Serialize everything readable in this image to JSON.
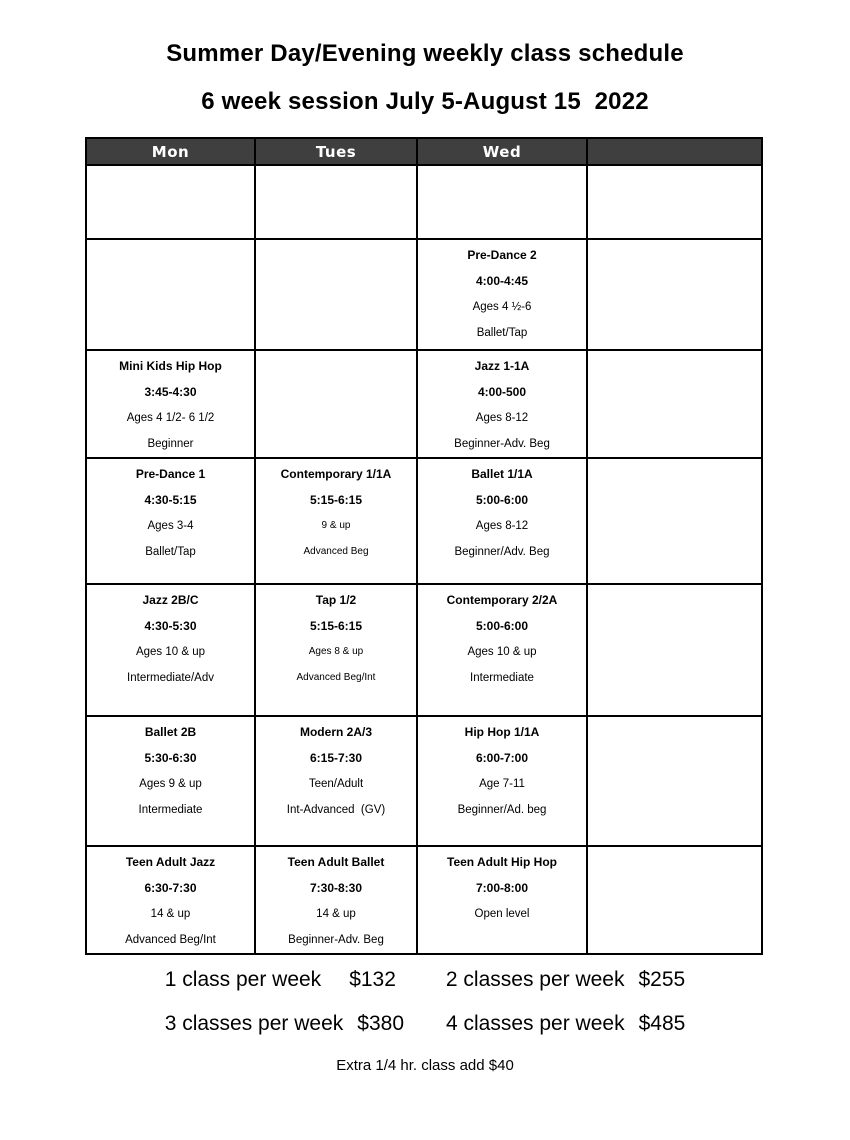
{
  "title": "Summer Day/Evening weekly class schedule",
  "subtitle": "6 week session July 5-August 15  2022",
  "table": {
    "headers": [
      "Mon",
      "Tues",
      "Wed",
      ""
    ],
    "rows": [
      {
        "cells": [
          [],
          [],
          [],
          []
        ]
      },
      {
        "cells": [
          [],
          [],
          [
            "Pre-Dance 2",
            "4:00-4:45",
            "Ages 4 ½-6",
            "Ballet/Tap"
          ],
          []
        ]
      },
      {
        "cells": [
          [
            "Mini Kids Hip Hop",
            "3:45-4:30",
            "Ages 4 1/2- 6 1/2",
            "Beginner"
          ],
          [],
          [
            "Jazz 1-1A",
            "4:00-500",
            "Ages 8-12",
            "Beginner-Adv. Beg"
          ],
          []
        ]
      },
      {
        "cells": [
          [
            "Pre-Dance 1",
            "4:30-5:15",
            "Ages 3-4",
            "Ballet/Tap"
          ],
          [
            "Contemporary 1/1A",
            "5:15-6:15",
            "9 & up",
            "Advanced Beg"
          ],
          [
            "Ballet 1/1A",
            "5:00-6:00",
            "Ages 8-12",
            "Beginner/Adv. Beg"
          ],
          []
        ]
      },
      {
        "cells": [
          [
            "Jazz 2B/C",
            "4:30-5:30",
            "Ages 10 & up",
            "Intermediate/Adv"
          ],
          [
            "Tap 1/2",
            "5:15-6:15",
            "Ages 8 & up",
            "Advanced Beg/Int"
          ],
          [
            "Contemporary 2/2A",
            "5:00-6:00",
            "Ages 10 & up",
            "Intermediate"
          ],
          []
        ]
      },
      {
        "cells": [
          [
            "Ballet 2B",
            "5:30-6:30",
            "Ages 9 & up",
            "Intermediate"
          ],
          [
            "Modern 2A/3",
            "6:15-7:30",
            "Teen/Adult",
            "Int-Advanced  (GV)"
          ],
          [
            "Hip Hop 1/1A",
            "6:00-7:00",
            "Age 7-11",
            "Beginner/Ad. beg"
          ],
          []
        ]
      },
      {
        "cells": [
          [
            "Teen Adult Jazz",
            "6:30-7:30",
            "14 & up",
            "Advanced Beg/Int"
          ],
          [
            "Teen Adult Ballet",
            "7:30-8:30",
            "14 & up",
            "Beginner-Adv. Beg"
          ],
          [
            "Teen Adult Hip Hop",
            "7:00-8:00",
            "Open level"
          ],
          []
        ]
      }
    ]
  },
  "pricing": {
    "options": [
      {
        "label": "1 class per week",
        "price": "$132"
      },
      {
        "label": "2 classes per week",
        "price": "$255"
      },
      {
        "label": "3 classes per week",
        "price": "$380"
      },
      {
        "label": "4 classes per week",
        "price": "$485"
      }
    ],
    "extra_note": "Extra 1/4 hr. class add $40"
  }
}
